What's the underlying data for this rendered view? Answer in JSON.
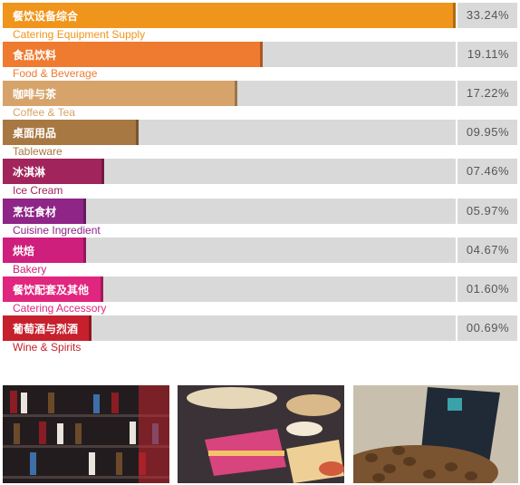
{
  "chart_data": {
    "type": "bar",
    "orientation": "horizontal",
    "categories": [
      {
        "zh": "餐饮设备综合",
        "en": "Catering Equipment Supply",
        "value": 33.24,
        "label": "33.24%",
        "color": "#f0951b"
      },
      {
        "zh": "食品饮料",
        "en": "Food & Beverage",
        "value": 19.11,
        "label": "19.11%",
        "color": "#ee7b30"
      },
      {
        "zh": "咖啡与茶",
        "en": "Coffee & Tea",
        "value": 17.22,
        "label": "17.22%",
        "color": "#d6a46a"
      },
      {
        "zh": "桌面用品",
        "en": "Tableware",
        "value": 9.95,
        "label": "09.95%",
        "color": "#a87843"
      },
      {
        "zh": "冰淇淋",
        "en": "Ice Cream",
        "value": 7.46,
        "label": "07.46%",
        "color": "#a1255c"
      },
      {
        "zh": "烹饪食材",
        "en": "Cuisine Ingredient",
        "value": 5.97,
        "label": "05.97%",
        "color": "#8e2587"
      },
      {
        "zh": "烘焙",
        "en": "Bakery",
        "value": 4.67,
        "label": "04.67%",
        "color": "#cf1f7d"
      },
      {
        "zh": "餐饮配套及其他",
        "en": "Catering  Accessory",
        "value": 1.6,
        "label": "01.60%",
        "color": "#e0267e"
      },
      {
        "zh": "葡萄酒与烈酒",
        "en": "Wine & Spirits",
        "value": 0.69,
        "label": "00.69%",
        "color": "#c5202c"
      }
    ],
    "xlim": [
      0,
      33.24
    ]
  },
  "photos": [
    {
      "name": "liquor-shelf-photo"
    },
    {
      "name": "cakes-photo"
    },
    {
      "name": "coffee-beans-photo"
    }
  ]
}
